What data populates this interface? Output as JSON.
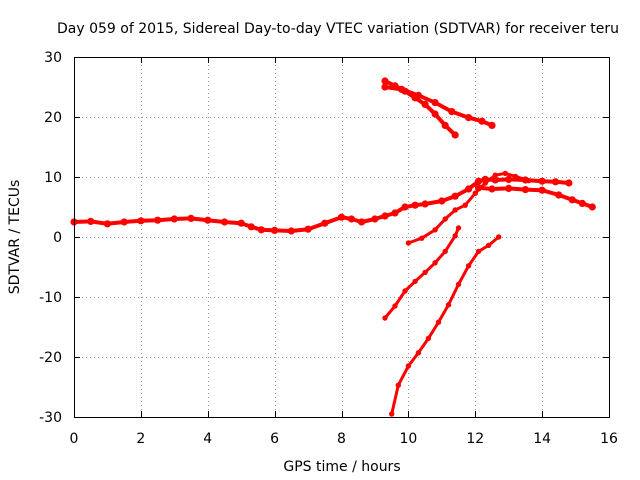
{
  "chart_data": {
    "type": "line",
    "title": "Day 059 of 2015, Sidereal Day-to-day VTEC variation (SDTVAR) for receiver teru",
    "xlabel": "GPS time / hours",
    "ylabel": "SDTVAR / TECUs",
    "xlim": [
      0,
      16
    ],
    "ylim": [
      -30,
      30
    ],
    "xticks": [
      0,
      2,
      4,
      6,
      8,
      10,
      12,
      14,
      16
    ],
    "yticks": [
      -30,
      -20,
      -10,
      0,
      10,
      20,
      30
    ],
    "grid": true,
    "color": "#ff0000",
    "series": [
      {
        "name": "main-band",
        "width": 4,
        "points": [
          [
            0,
            2.5
          ],
          [
            0.5,
            2.6
          ],
          [
            1,
            2.2
          ],
          [
            1.5,
            2.5
          ],
          [
            2,
            2.7
          ],
          [
            2.5,
            2.8
          ],
          [
            3,
            3.0
          ],
          [
            3.5,
            3.1
          ],
          [
            4,
            2.8
          ],
          [
            4.5,
            2.5
          ],
          [
            5,
            2.3
          ],
          [
            5.3,
            1.7
          ],
          [
            5.6,
            1.2
          ],
          [
            6,
            1.1
          ],
          [
            6.5,
            1.0
          ],
          [
            7,
            1.3
          ],
          [
            7.5,
            2.3
          ],
          [
            8,
            3.3
          ],
          [
            8.3,
            3.0
          ],
          [
            8.6,
            2.5
          ],
          [
            9,
            3.0
          ],
          [
            9.3,
            3.5
          ],
          [
            9.6,
            4.0
          ],
          [
            9.9,
            5.0
          ],
          [
            10.2,
            5.3
          ],
          [
            10.5,
            5.5
          ],
          [
            11,
            6.0
          ],
          [
            11.4,
            6.8
          ],
          [
            11.8,
            8.0
          ],
          [
            12.1,
            9.3
          ],
          [
            12.3,
            9.6
          ],
          [
            12.6,
            9.5
          ],
          [
            13,
            9.6
          ],
          [
            13.5,
            9.5
          ],
          [
            14,
            9.3
          ],
          [
            14.4,
            9.2
          ],
          [
            14.8,
            9.0
          ]
        ]
      },
      {
        "name": "main-band-lower",
        "width": 4,
        "points": [
          [
            12.1,
            8.2
          ],
          [
            12.5,
            8.0
          ],
          [
            13,
            8.1
          ],
          [
            13.5,
            7.9
          ],
          [
            14,
            7.8
          ],
          [
            14.5,
            7.0
          ],
          [
            14.9,
            6.2
          ],
          [
            15.2,
            5.6
          ],
          [
            15.5,
            5.0
          ]
        ]
      },
      {
        "name": "upper-track-1",
        "width": 4,
        "points": [
          [
            9.3,
            26
          ],
          [
            9.6,
            25.2
          ],
          [
            9.9,
            24.3
          ],
          [
            10.2,
            23.2
          ],
          [
            10.5,
            22.1
          ],
          [
            10.8,
            20.5
          ],
          [
            11.1,
            18.6
          ],
          [
            11.4,
            17.0
          ]
        ]
      },
      {
        "name": "upper-track-2",
        "width": 4,
        "points": [
          [
            9.3,
            25
          ],
          [
            9.8,
            24.6
          ],
          [
            10.3,
            23.6
          ],
          [
            10.8,
            22.4
          ],
          [
            11.3,
            20.9
          ],
          [
            11.8,
            19.9
          ],
          [
            12.2,
            19.3
          ],
          [
            12.5,
            18.6
          ]
        ]
      },
      {
        "name": "descending-track-1",
        "width": 3,
        "points": [
          [
            9.3,
            -13.5
          ],
          [
            9.6,
            -11.5
          ],
          [
            9.9,
            -9
          ],
          [
            10.2,
            -7.4
          ],
          [
            10.5,
            -5.9
          ],
          [
            10.8,
            -4.3
          ],
          [
            11.1,
            -2.4
          ],
          [
            11.4,
            0.2
          ],
          [
            11.5,
            1.5
          ]
        ]
      },
      {
        "name": "descending-track-2",
        "width": 3,
        "points": [
          [
            9.5,
            -29.5
          ],
          [
            9.7,
            -24.7
          ],
          [
            10,
            -21.5
          ],
          [
            10.3,
            -19.3
          ],
          [
            10.6,
            -16.9
          ],
          [
            10.9,
            -14.2
          ],
          [
            11.2,
            -11.3
          ],
          [
            11.5,
            -7.9
          ],
          [
            11.8,
            -4.8
          ],
          [
            12.1,
            -2.4
          ],
          [
            12.4,
            -1.4
          ],
          [
            12.7,
            0
          ]
        ]
      },
      {
        "name": "branch-track",
        "width": 3,
        "points": [
          [
            10.0,
            -1.0
          ],
          [
            10.4,
            -0.2
          ],
          [
            10.8,
            1.2
          ],
          [
            11.1,
            3.0
          ],
          [
            11.4,
            4.5
          ],
          [
            11.7,
            5.3
          ],
          [
            12.0,
            7.3
          ],
          [
            12.3,
            9.0
          ],
          [
            12.6,
            10.3
          ],
          [
            12.9,
            10.6
          ],
          [
            13.2,
            10.1
          ],
          [
            13.6,
            9.4
          ]
        ]
      }
    ]
  }
}
